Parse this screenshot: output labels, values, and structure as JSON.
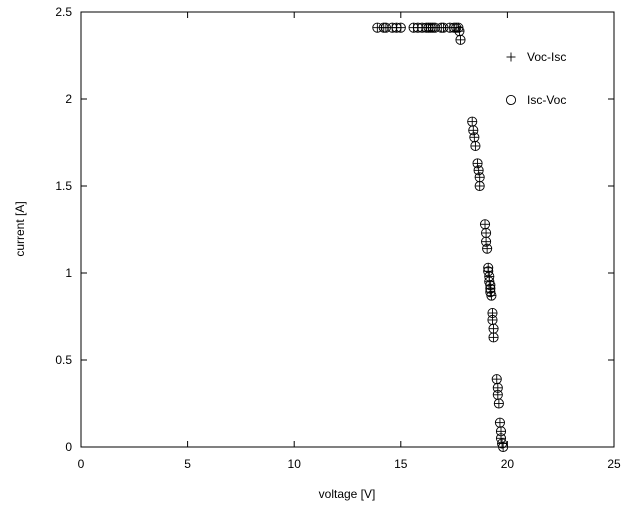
{
  "chart_data": {
    "type": "scatter",
    "xlabel": "voltage [V]",
    "ylabel": "current [A]",
    "xlim": [
      0,
      25
    ],
    "ylim": [
      0,
      2.5
    ],
    "x_ticks": [
      "0",
      "5",
      "10",
      "15",
      "20",
      "25"
    ],
    "y_ticks": [
      "0",
      "0.5",
      "1",
      "1.5",
      "2",
      "2.5"
    ],
    "grid": false,
    "legend_position": "top-right",
    "series": [
      {
        "name": "Voc-Isc",
        "marker": "plus",
        "points": [
          [
            13.9,
            2.41
          ],
          [
            14.2,
            2.41
          ],
          [
            14.3,
            2.41
          ],
          [
            14.6,
            2.41
          ],
          [
            14.8,
            2.41
          ],
          [
            15.0,
            2.41
          ],
          [
            15.6,
            2.41
          ],
          [
            15.8,
            2.41
          ],
          [
            16.0,
            2.41
          ],
          [
            16.2,
            2.41
          ],
          [
            16.3,
            2.41
          ],
          [
            16.4,
            2.41
          ],
          [
            16.5,
            2.41
          ],
          [
            16.6,
            2.41
          ],
          [
            16.9,
            2.41
          ],
          [
            17.0,
            2.41
          ],
          [
            17.3,
            2.41
          ],
          [
            17.5,
            2.41
          ],
          [
            17.6,
            2.41
          ],
          [
            17.7,
            2.41
          ],
          [
            17.75,
            2.39
          ],
          [
            17.8,
            2.34
          ],
          [
            18.35,
            1.87
          ],
          [
            18.4,
            1.82
          ],
          [
            18.45,
            1.78
          ],
          [
            18.5,
            1.73
          ],
          [
            18.6,
            1.63
          ],
          [
            18.65,
            1.59
          ],
          [
            18.7,
            1.55
          ],
          [
            18.7,
            1.5
          ],
          [
            18.95,
            1.28
          ],
          [
            19.0,
            1.23
          ],
          [
            19.0,
            1.18
          ],
          [
            19.05,
            1.14
          ],
          [
            19.1,
            1.03
          ],
          [
            19.1,
            1.01
          ],
          [
            19.15,
            0.98
          ],
          [
            19.15,
            0.95
          ],
          [
            19.2,
            0.93
          ],
          [
            19.2,
            0.91
          ],
          [
            19.2,
            0.89
          ],
          [
            19.25,
            0.87
          ],
          [
            19.3,
            0.77
          ],
          [
            19.3,
            0.73
          ],
          [
            19.35,
            0.68
          ],
          [
            19.35,
            0.63
          ],
          [
            19.5,
            0.39
          ],
          [
            19.55,
            0.34
          ],
          [
            19.55,
            0.3
          ],
          [
            19.6,
            0.25
          ],
          [
            19.65,
            0.14
          ],
          [
            19.7,
            0.09
          ],
          [
            19.7,
            0.05
          ],
          [
            19.75,
            0.02
          ],
          [
            19.8,
            0.0
          ]
        ]
      },
      {
        "name": "Isc-Voc",
        "marker": "circle",
        "points": [
          [
            13.9,
            2.41
          ],
          [
            14.2,
            2.41
          ],
          [
            14.3,
            2.41
          ],
          [
            14.6,
            2.41
          ],
          [
            14.8,
            2.41
          ],
          [
            15.0,
            2.41
          ],
          [
            15.6,
            2.41
          ],
          [
            15.8,
            2.41
          ],
          [
            16.0,
            2.41
          ],
          [
            16.2,
            2.41
          ],
          [
            16.3,
            2.41
          ],
          [
            16.4,
            2.41
          ],
          [
            16.5,
            2.41
          ],
          [
            16.6,
            2.41
          ],
          [
            16.9,
            2.41
          ],
          [
            17.0,
            2.41
          ],
          [
            17.3,
            2.41
          ],
          [
            17.5,
            2.41
          ],
          [
            17.6,
            2.41
          ],
          [
            17.7,
            2.41
          ],
          [
            17.75,
            2.39
          ],
          [
            17.8,
            2.34
          ],
          [
            18.35,
            1.87
          ],
          [
            18.4,
            1.82
          ],
          [
            18.45,
            1.78
          ],
          [
            18.5,
            1.73
          ],
          [
            18.6,
            1.63
          ],
          [
            18.65,
            1.59
          ],
          [
            18.7,
            1.55
          ],
          [
            18.7,
            1.5
          ],
          [
            18.95,
            1.28
          ],
          [
            19.0,
            1.23
          ],
          [
            19.0,
            1.18
          ],
          [
            19.05,
            1.14
          ],
          [
            19.1,
            1.03
          ],
          [
            19.1,
            1.01
          ],
          [
            19.15,
            0.98
          ],
          [
            19.15,
            0.95
          ],
          [
            19.2,
            0.93
          ],
          [
            19.2,
            0.91
          ],
          [
            19.2,
            0.89
          ],
          [
            19.25,
            0.87
          ],
          [
            19.3,
            0.77
          ],
          [
            19.3,
            0.73
          ],
          [
            19.35,
            0.68
          ],
          [
            19.35,
            0.63
          ],
          [
            19.5,
            0.39
          ],
          [
            19.55,
            0.34
          ],
          [
            19.55,
            0.3
          ],
          [
            19.6,
            0.25
          ],
          [
            19.65,
            0.14
          ],
          [
            19.7,
            0.09
          ],
          [
            19.7,
            0.05
          ],
          [
            19.75,
            0.02
          ],
          [
            19.8,
            0.0
          ]
        ]
      }
    ]
  }
}
